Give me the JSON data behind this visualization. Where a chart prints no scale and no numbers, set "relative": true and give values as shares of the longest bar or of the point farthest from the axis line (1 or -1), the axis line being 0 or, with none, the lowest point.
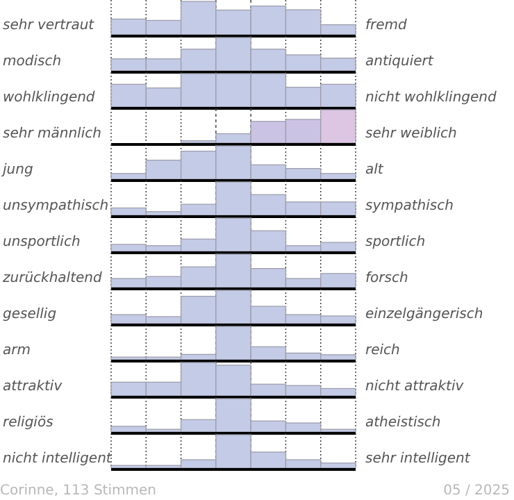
{
  "chart_data": [
    {
      "type": "bar",
      "relative": true,
      "grid": "x",
      "ylabel": "sehr vertraut",
      "y2label": "fremd",
      "categories": [
        null,
        null,
        null,
        null,
        null,
        null,
        null
      ],
      "values": [
        0.47,
        0.43,
        1,
        0.74,
        0.86,
        0.75,
        0.3
      ],
      "color": "#c4cbe6"
    },
    {
      "type": "bar",
      "relative": true,
      "grid": "x",
      "ylabel": "modisch",
      "y2label": "antiquiert",
      "categories": [
        null,
        null,
        null,
        null,
        null,
        null,
        null
      ],
      "values": [
        0.36,
        0.36,
        0.65,
        1,
        0.65,
        0.48,
        0.38
      ],
      "color": "#c4cbe6"
    },
    {
      "type": "bar",
      "relative": true,
      "grid": "x",
      "ylabel": "wohlklingend",
      "y2label": "nicht wohlklingend",
      "categories": [
        null,
        null,
        null,
        null,
        null,
        null,
        null
      ],
      "values": [
        0.68,
        0.57,
        1,
        1,
        1,
        0.59,
        0.68
      ],
      "color": "#c4cbe6"
    },
    {
      "type": "bar",
      "relative": true,
      "grid": "x",
      "ylabel": "sehr männlich",
      "y2label": "sehr weiblich",
      "categories": [
        null,
        null,
        null,
        null,
        null,
        null,
        null
      ],
      "values": [
        0,
        0,
        0.07,
        0.28,
        0.65,
        0.71,
        1
      ],
      "colors": [
        "#c4cbe6",
        "#c4cbe6",
        "#c4cbe6",
        "#c4cbe6",
        "#cbc3e4",
        "#cbc3e4",
        "#dcc6e3"
      ]
    },
    {
      "type": "bar",
      "relative": true,
      "grid": "x",
      "ylabel": "jung",
      "y2label": "alt",
      "categories": [
        null,
        null,
        null,
        null,
        null,
        null,
        null
      ],
      "values": [
        0.17,
        0.57,
        0.84,
        1,
        0.43,
        0.32,
        0.17
      ],
      "color": "#c4cbe6"
    },
    {
      "type": "bar",
      "relative": true,
      "grid": "x",
      "ylabel": "unsympathisch",
      "y2label": "sympathisch",
      "categories": [
        null,
        null,
        null,
        null,
        null,
        null,
        null
      ],
      "values": [
        0.22,
        0.11,
        0.33,
        1,
        0.62,
        0.4,
        0.4
      ],
      "color": "#c4cbe6"
    },
    {
      "type": "bar",
      "relative": true,
      "grid": "x",
      "ylabel": "unsportlich",
      "y2label": "sportlich",
      "categories": [
        null,
        null,
        null,
        null,
        null,
        null,
        null
      ],
      "values": [
        0.21,
        0.17,
        0.37,
        1,
        0.62,
        0.17,
        0.27
      ],
      "color": "#c4cbe6"
    },
    {
      "type": "bar",
      "relative": true,
      "grid": "x",
      "ylabel": "zurückhaltend",
      "y2label": "forsch",
      "categories": [
        null,
        null,
        null,
        null,
        null,
        null,
        null
      ],
      "values": [
        0.27,
        0.33,
        0.62,
        1,
        0.57,
        0.27,
        0.42
      ],
      "color": "#c4cbe6"
    },
    {
      "type": "bar",
      "relative": true,
      "grid": "x",
      "ylabel": "gesellig",
      "y2label": "einzelgängerisch",
      "categories": [
        null,
        null,
        null,
        null,
        null,
        null,
        null
      ],
      "values": [
        0.27,
        0.21,
        0.82,
        1,
        0.52,
        0.27,
        0.23
      ],
      "color": "#c4cbe6"
    },
    {
      "type": "bar",
      "relative": true,
      "grid": "x",
      "ylabel": "arm",
      "y2label": "reich",
      "categories": [
        null,
        null,
        null,
        null,
        null,
        null,
        null
      ],
      "values": [
        0.08,
        0.08,
        0.16,
        1,
        0.39,
        0.2,
        0.15
      ],
      "color": "#c4cbe6"
    },
    {
      "type": "bar",
      "relative": true,
      "grid": "x",
      "ylabel": "attraktiv",
      "y2label": "nicht attraktiv",
      "categories": [
        null,
        null,
        null,
        null,
        null,
        null,
        null
      ],
      "values": [
        0.41,
        0.41,
        1,
        0.92,
        0.35,
        0.31,
        0.22
      ],
      "color": "#c4cbe6"
    },
    {
      "type": "bar",
      "relative": true,
      "grid": "x",
      "ylabel": "religiös",
      "y2label": "atheistisch",
      "categories": [
        null,
        null,
        null,
        null,
        null,
        null,
        null
      ],
      "values": [
        0.17,
        0.08,
        0.37,
        1,
        0.33,
        0.27,
        0.08
      ],
      "color": "#c4cbe6"
    },
    {
      "type": "bar",
      "relative": true,
      "grid": "x",
      "ylabel": "nicht intelligent",
      "y2label": "sehr intelligent",
      "categories": [
        null,
        null,
        null,
        null,
        null,
        null,
        null
      ],
      "values": [
        0.08,
        0.08,
        0.25,
        1,
        0.48,
        0.25,
        0.15
      ],
      "color": "#c4cbe6",
      "annotations": [
        "Corinne, 113 Stimmen",
        "05 / 2025"
      ]
    }
  ]
}
